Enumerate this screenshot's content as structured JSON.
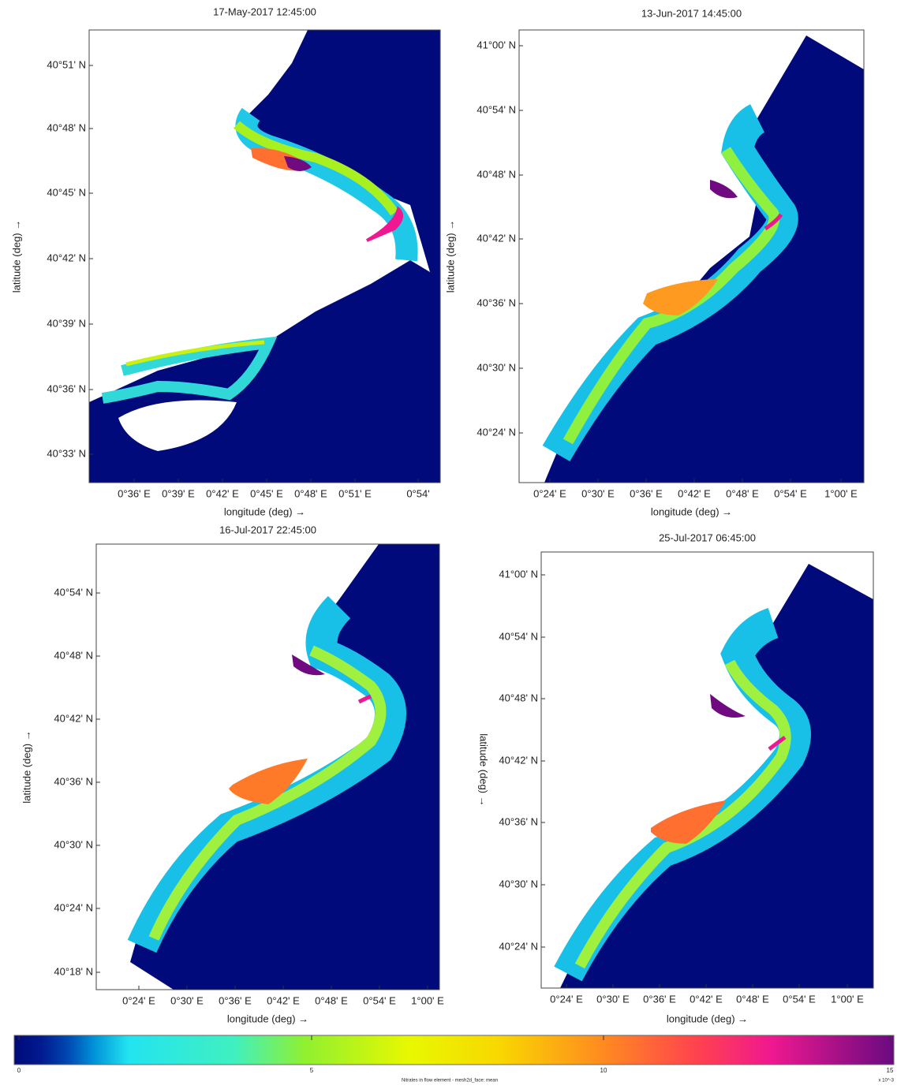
{
  "panels": [
    {
      "title": "17-May-2017 12:45:00",
      "xlabel": "longitude (deg) →",
      "ylabel": "latitude (deg) →",
      "xticks": [
        "0°36' E",
        "0°39' E",
        "0°42' E",
        "0°45' E",
        "0°48' E",
        "0°51' E",
        "0°54'"
      ],
      "yticks": [
        "40°51' N",
        "40°48' N",
        "40°45' N",
        "40°42' N",
        "40°39' N",
        "40°36' N",
        "40°33' N"
      ]
    },
    {
      "title": "13-Jun-2017 14:45:00",
      "xlabel": "longitude (deg) →",
      "ylabel": "latitude (deg) →",
      "xticks": [
        "0°24' E",
        "0°30' E",
        "0°36' E",
        "0°42' E",
        "0°48' E",
        "0°54' E",
        "1°00' E"
      ],
      "yticks": [
        "41°00' N",
        "40°54' N",
        "40°48' N",
        "40°42' N",
        "40°36' N",
        "40°30' N",
        "40°24' N"
      ]
    },
    {
      "title": "16-Jul-2017 22:45:00",
      "xlabel": "longitude (deg) →",
      "ylabel": "latitude (deg) →",
      "xticks": [
        "0°24' E",
        "0°30' E",
        "0°36' E",
        "0°42' E",
        "0°48' E",
        "0°54' E",
        "1°00' E"
      ],
      "yticks": [
        "40°54' N",
        "40°48' N",
        "40°42' N",
        "40°36' N",
        "40°30' N",
        "40°24' N",
        "40°18' N"
      ]
    },
    {
      "title": "25-Jul-2017 06:45:00",
      "xlabel": "longitude (deg) →",
      "ylabel": "latitude (deg) →",
      "xticks": [
        "0°24' E",
        "0°30' E",
        "0°36' E",
        "0°42' E",
        "0°48' E",
        "0°54' E",
        "1°00' E"
      ],
      "yticks": [
        "41°00' N",
        "40°54' N",
        "40°48' N",
        "40°42' N",
        "40°36' N",
        "40°30' N",
        "40°24' N"
      ]
    }
  ],
  "colorbar": {
    "ticks": [
      "0",
      "5",
      "10",
      "15"
    ],
    "label": "Nitrates in flow element - mesh2d_face: mean",
    "exponent": "x 10^-3"
  }
}
